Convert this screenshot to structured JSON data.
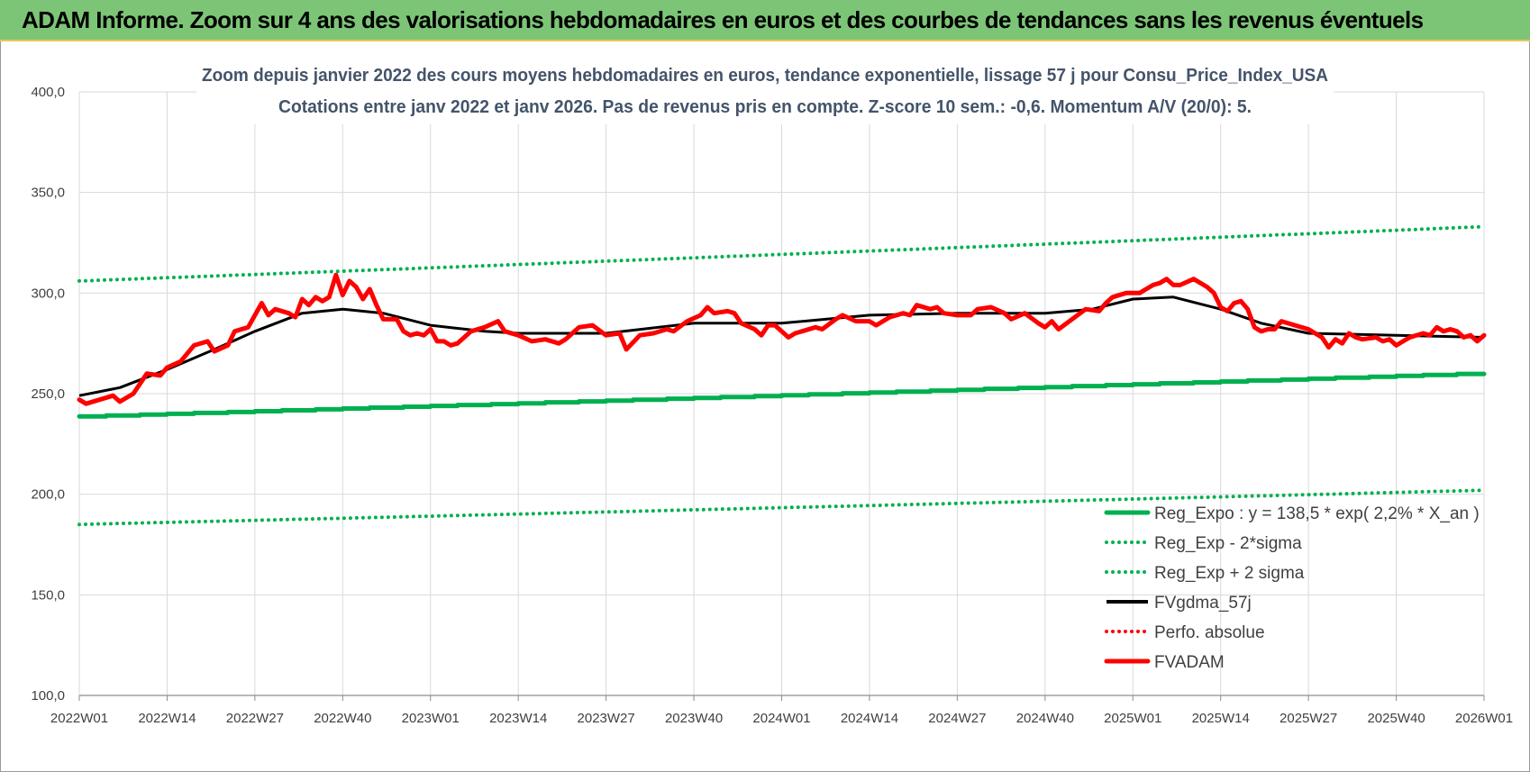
{
  "header": {
    "title": "ADAM Informe. Zoom sur 4 ans des valorisations hebdomadaires en euros et des courbes de tendances sans les revenus éventuels"
  },
  "colors": {
    "banner": "#7cc576",
    "reg_expo": "#00b050",
    "fvgdma": "#000000",
    "fvadam": "#ff0000",
    "perfo": "#ff0000",
    "grid": "#d9d9d9"
  },
  "chart_data": {
    "type": "line",
    "title_line1": "Zoom depuis janvier 2022 des cours moyens hebdomadaires en euros, tendance exponentielle, lissage 57 j pour Consu_Price_Index_USA",
    "title_line2": "Cotations entre janv 2022 et janv 2026. Pas de revenus pris en compte. Z-score 10 sem.: -0,6. Momentum A/V (20/0): 5.",
    "ylim": [
      100,
      400
    ],
    "yticks": [
      "100,0",
      "150,0",
      "200,0",
      "250,0",
      "300,0",
      "350,0",
      "400,0"
    ],
    "ytick_values": [
      100,
      150,
      200,
      250,
      300,
      350,
      400
    ],
    "x_count": 209,
    "x_tick_labels": [
      "2022W01",
      "2022W14",
      "2022W27",
      "2022W40",
      "2023W01",
      "2023W14",
      "2023W27",
      "2023W40",
      "2024W01",
      "2024W14",
      "2024W27",
      "2024W40",
      "2025W01",
      "2025W14",
      "2025W27",
      "2025W40",
      "2026W01"
    ],
    "x_tick_index": [
      0,
      13,
      26,
      39,
      52,
      65,
      78,
      91,
      104,
      117,
      130,
      143,
      156,
      169,
      182,
      195,
      208
    ],
    "legend_position": "bottom-right",
    "series": [
      {
        "name": "Reg_Expo : y = 138,5 * exp( 2,2% *  X_an )",
        "kind": "reg",
        "start": 238.5,
        "end": 260.0,
        "style": "solid-thick",
        "color": "#00b050"
      },
      {
        "name": "Reg_Exp - 2*sigma",
        "kind": "reg",
        "start": 185.0,
        "end": 202.0,
        "style": "dotted",
        "color": "#00b050"
      },
      {
        "name": "Reg_Exp + 2 sigma",
        "kind": "reg",
        "start": 306.0,
        "end": 333.0,
        "style": "dotted",
        "color": "#00b050"
      },
      {
        "name": "FVgdma_57j",
        "kind": "points",
        "style": "solid",
        "color": "#000000",
        "points": [
          [
            0,
            249
          ],
          [
            6,
            253
          ],
          [
            13,
            262
          ],
          [
            20,
            272
          ],
          [
            26,
            281
          ],
          [
            33,
            290
          ],
          [
            39,
            292
          ],
          [
            45,
            290
          ],
          [
            52,
            284
          ],
          [
            60,
            281
          ],
          [
            65,
            280
          ],
          [
            78,
            280
          ],
          [
            91,
            285
          ],
          [
            104,
            285
          ],
          [
            117,
            289
          ],
          [
            130,
            290
          ],
          [
            143,
            290
          ],
          [
            150,
            292
          ],
          [
            156,
            297
          ],
          [
            162,
            298
          ],
          [
            169,
            292
          ],
          [
            175,
            285
          ],
          [
            182,
            280
          ],
          [
            195,
            279
          ],
          [
            208,
            278
          ]
        ]
      },
      {
        "name": "Perfo. absolue",
        "kind": "none",
        "style": "dotted",
        "color": "#ff0000"
      },
      {
        "name": "FVADAM",
        "kind": "points",
        "style": "solid-thick",
        "color": "#ff0000",
        "points": [
          [
            0,
            247
          ],
          [
            1,
            245
          ],
          [
            3,
            247
          ],
          [
            5,
            249
          ],
          [
            6,
            246
          ],
          [
            8,
            250
          ],
          [
            10,
            260
          ],
          [
            12,
            259
          ],
          [
            13,
            263
          ],
          [
            15,
            266
          ],
          [
            17,
            274
          ],
          [
            19,
            276
          ],
          [
            20,
            271
          ],
          [
            22,
            274
          ],
          [
            23,
            281
          ],
          [
            25,
            283
          ],
          [
            27,
            295
          ],
          [
            28,
            289
          ],
          [
            29,
            292
          ],
          [
            31,
            290
          ],
          [
            32,
            288
          ],
          [
            33,
            297
          ],
          [
            34,
            294
          ],
          [
            35,
            298
          ],
          [
            36,
            296
          ],
          [
            37,
            298
          ],
          [
            38,
            309
          ],
          [
            39,
            299
          ],
          [
            40,
            306
          ],
          [
            41,
            303
          ],
          [
            42,
            297
          ],
          [
            43,
            302
          ],
          [
            44,
            294
          ],
          [
            45,
            287
          ],
          [
            47,
            287
          ],
          [
            48,
            281
          ],
          [
            49,
            279
          ],
          [
            50,
            280
          ],
          [
            51,
            279
          ],
          [
            52,
            282
          ],
          [
            53,
            276
          ],
          [
            54,
            276
          ],
          [
            55,
            274
          ],
          [
            56,
            275
          ],
          [
            58,
            281
          ],
          [
            60,
            283
          ],
          [
            62,
            286
          ],
          [
            63,
            281
          ],
          [
            65,
            279
          ],
          [
            67,
            276
          ],
          [
            69,
            277
          ],
          [
            71,
            275
          ],
          [
            72,
            277
          ],
          [
            74,
            283
          ],
          [
            76,
            284
          ],
          [
            78,
            279
          ],
          [
            80,
            280
          ],
          [
            81,
            272
          ],
          [
            83,
            279
          ],
          [
            85,
            280
          ],
          [
            87,
            282
          ],
          [
            88,
            281
          ],
          [
            90,
            286
          ],
          [
            92,
            289
          ],
          [
            93,
            293
          ],
          [
            94,
            290
          ],
          [
            96,
            291
          ],
          [
            97,
            290
          ],
          [
            98,
            285
          ],
          [
            100,
            282
          ],
          [
            101,
            279
          ],
          [
            102,
            284
          ],
          [
            103,
            284
          ],
          [
            105,
            278
          ],
          [
            106,
            280
          ],
          [
            107,
            281
          ],
          [
            109,
            283
          ],
          [
            110,
            282
          ],
          [
            112,
            287
          ],
          [
            113,
            289
          ],
          [
            115,
            286
          ],
          [
            117,
            286
          ],
          [
            118,
            284
          ],
          [
            120,
            288
          ],
          [
            122,
            290
          ],
          [
            123,
            289
          ],
          [
            124,
            294
          ],
          [
            126,
            292
          ],
          [
            127,
            293
          ],
          [
            128,
            290
          ],
          [
            130,
            289
          ],
          [
            132,
            289
          ],
          [
            133,
            292
          ],
          [
            135,
            293
          ],
          [
            137,
            290
          ],
          [
            138,
            287
          ],
          [
            140,
            290
          ],
          [
            142,
            285
          ],
          [
            143,
            283
          ],
          [
            144,
            286
          ],
          [
            145,
            282
          ],
          [
            147,
            287
          ],
          [
            149,
            292
          ],
          [
            151,
            291
          ],
          [
            152,
            295
          ],
          [
            153,
            298
          ],
          [
            155,
            300
          ],
          [
            157,
            300
          ],
          [
            159,
            304
          ],
          [
            160,
            305
          ],
          [
            161,
            307
          ],
          [
            162,
            304
          ],
          [
            163,
            304
          ],
          [
            165,
            307
          ],
          [
            167,
            303
          ],
          [
            168,
            300
          ],
          [
            169,
            293
          ],
          [
            170,
            291
          ],
          [
            171,
            295
          ],
          [
            172,
            296
          ],
          [
            173,
            292
          ],
          [
            174,
            283
          ],
          [
            175,
            281
          ],
          [
            176,
            282
          ],
          [
            177,
            282
          ],
          [
            178,
            286
          ],
          [
            180,
            284
          ],
          [
            182,
            282
          ],
          [
            183,
            280
          ],
          [
            184,
            278
          ],
          [
            185,
            273
          ],
          [
            186,
            277
          ],
          [
            187,
            275
          ],
          [
            188,
            280
          ],
          [
            189,
            278
          ],
          [
            190,
            277
          ],
          [
            192,
            278
          ],
          [
            193,
            276
          ],
          [
            194,
            277
          ],
          [
            195,
            274
          ],
          [
            196,
            276
          ],
          [
            197,
            278
          ],
          [
            198,
            279
          ],
          [
            199,
            280
          ],
          [
            200,
            279
          ],
          [
            201,
            283
          ],
          [
            202,
            281
          ],
          [
            203,
            282
          ],
          [
            204,
            281
          ],
          [
            205,
            278
          ],
          [
            206,
            279
          ],
          [
            207,
            276
          ],
          [
            208,
            279
          ]
        ]
      }
    ]
  }
}
